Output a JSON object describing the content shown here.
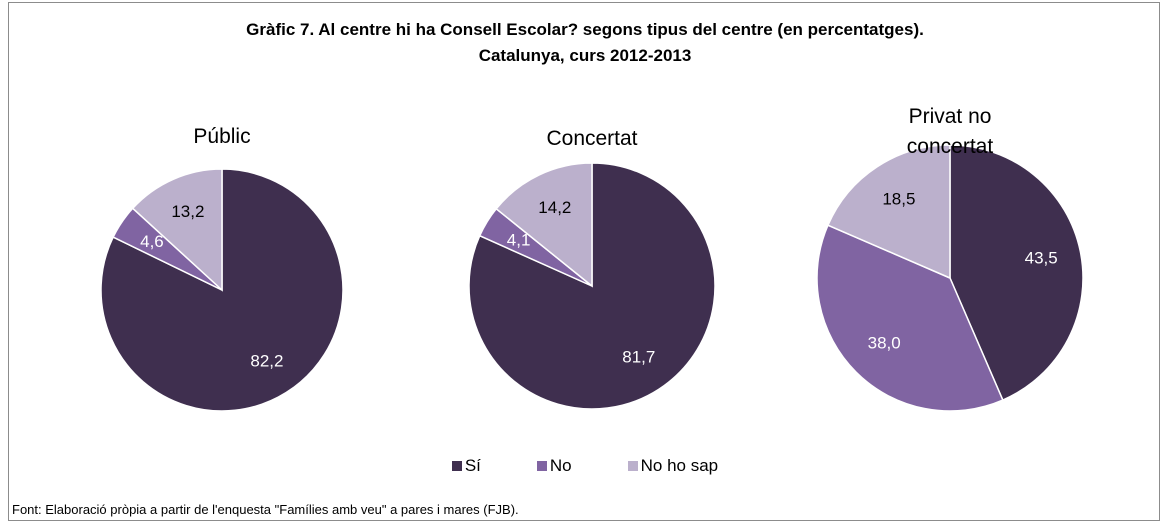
{
  "title": [
    "Gràfic 7. Al centre hi ha Consell Escolar? segons tipus del centre (en percentatges).",
    "Catalunya, curs 2012-2013"
  ],
  "chart_data": [
    {
      "type": "pie",
      "title": "Públic",
      "categories": [
        "Sí",
        "No",
        "No ho sap"
      ],
      "values": [
        82.2,
        4.6,
        13.2
      ],
      "value_labels": [
        "82,2",
        "4,6",
        "13,2"
      ],
      "colors": [
        "#3f2f4f",
        "#8064a2",
        "#bbb0cc"
      ]
    },
    {
      "type": "pie",
      "title": "Concertat",
      "categories": [
        "Sí",
        "No",
        "No ho sap"
      ],
      "values": [
        81.7,
        4.1,
        14.2
      ],
      "value_labels": [
        "81,7",
        "4,1",
        "14,2"
      ],
      "colors": [
        "#3f2f4f",
        "#8064a2",
        "#bbb0cc"
      ]
    },
    {
      "type": "pie",
      "title": "Privat no concertat",
      "categories": [
        "Sí",
        "No",
        "No ho sap"
      ],
      "values": [
        43.5,
        38.0,
        18.5
      ],
      "value_labels": [
        "43,5",
        "38,0",
        "18,5"
      ],
      "colors": [
        "#3f2f4f",
        "#8064a2",
        "#bbb0cc"
      ]
    }
  ],
  "source": "Font: Elaboració pròpia a partir de l'enquesta \"Famílies amb veu\" a pares i mares (FJB)."
}
